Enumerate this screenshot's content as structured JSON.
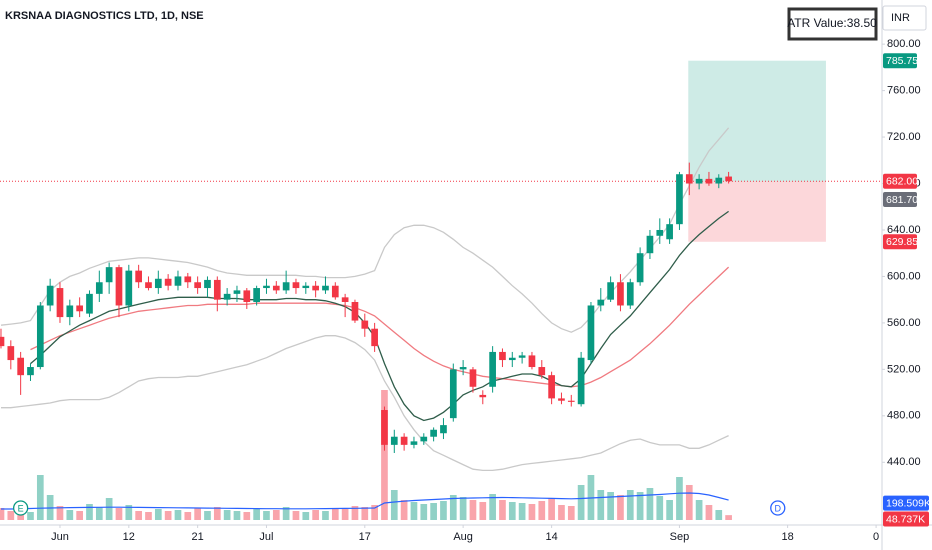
{
  "header": {
    "symbol": "KRSNAA DIAGNOSTICS LTD, 1D, NSE",
    "atr": "ATR Value:38.50",
    "currency": "INR"
  },
  "chart_data": {
    "type": "candlestick",
    "up_color": "#089981",
    "down_color": "#f23645",
    "open": [
      548,
      540,
      530,
      515,
      522,
      575,
      590,
      565,
      575,
      568,
      585,
      595,
      608,
      575,
      605,
      595,
      590,
      598,
      592,
      600,
      595,
      590,
      597,
      580,
      585,
      588,
      578,
      590,
      592,
      588,
      595,
      590,
      592,
      588,
      592,
      582,
      578,
      562,
      555,
      485,
      455,
      462,
      455,
      458,
      462,
      465,
      478,
      520,
      520,
      498,
      505,
      535,
      528,
      530,
      532,
      522,
      515,
      495,
      493,
      490,
      528,
      575,
      580,
      595,
      575,
      595,
      620,
      635,
      632,
      645,
      688,
      680,
      684,
      680,
      686
    ],
    "high": [
      555,
      545,
      535,
      525,
      578,
      598,
      595,
      580,
      582,
      588,
      605,
      612,
      610,
      610,
      610,
      600,
      605,
      602,
      605,
      603,
      600,
      600,
      600,
      590,
      592,
      590,
      592,
      598,
      596,
      605,
      598,
      595,
      596,
      600,
      595,
      585,
      580,
      568,
      560,
      488,
      468,
      465,
      462,
      465,
      470,
      478,
      525,
      528,
      522,
      502,
      540,
      538,
      535,
      535,
      535,
      528,
      518,
      500,
      498,
      535,
      578,
      590,
      600,
      602,
      598,
      625,
      640,
      650,
      650,
      690,
      698,
      688,
      690,
      688,
      690
    ],
    "low": [
      538,
      520,
      498,
      510,
      520,
      570,
      560,
      558,
      565,
      565,
      578,
      585,
      565,
      570,
      590,
      588,
      585,
      588,
      588,
      590,
      585,
      582,
      570,
      575,
      578,
      572,
      575,
      585,
      585,
      585,
      585,
      585,
      582,
      585,
      580,
      565,
      560,
      548,
      535,
      450,
      448,
      450,
      452,
      455,
      458,
      460,
      475,
      515,
      500,
      490,
      500,
      522,
      522,
      525,
      520,
      512,
      490,
      490,
      488,
      488,
      525,
      570,
      578,
      570,
      572,
      592,
      615,
      628,
      628,
      640,
      670,
      675,
      678,
      676,
      680
    ],
    "close": [
      540,
      528,
      515,
      522,
      575,
      592,
      565,
      575,
      570,
      585,
      595,
      608,
      575,
      605,
      595,
      590,
      598,
      592,
      600,
      595,
      590,
      597,
      580,
      585,
      588,
      578,
      590,
      592,
      588,
      595,
      590,
      592,
      588,
      592,
      582,
      578,
      562,
      555,
      540,
      455,
      462,
      455,
      458,
      462,
      468,
      472,
      520,
      522,
      505,
      496,
      535,
      528,
      530,
      532,
      522,
      515,
      495,
      493,
      492,
      530,
      575,
      580,
      595,
      575,
      595,
      620,
      635,
      640,
      645,
      688,
      680,
      684,
      680,
      685,
      682
    ],
    "volume": {
      "values": [
        120,
        90,
        110,
        80,
        450,
        250,
        140,
        100,
        90,
        160,
        130,
        220,
        120,
        150,
        90,
        80,
        110,
        90,
        100,
        80,
        120,
        90,
        130,
        100,
        90,
        80,
        110,
        90,
        100,
        130,
        90,
        80,
        100,
        90,
        120,
        110,
        140,
        130,
        150,
        1300,
        300,
        200,
        180,
        160,
        170,
        190,
        250,
        230,
        200,
        180,
        260,
        200,
        180,
        170,
        160,
        190,
        220,
        150,
        140,
        350,
        450,
        300,
        280,
        250,
        300,
        280,
        320,
        240,
        200,
        430,
        350,
        200,
        150,
        100,
        48.737
      ],
      "value_labels": [
        null,
        null,
        null,
        null,
        null,
        null,
        null,
        null,
        null,
        null,
        null,
        null,
        null,
        null,
        null,
        null,
        null,
        null,
        null,
        null,
        null,
        null,
        null,
        null,
        null,
        null,
        null,
        null,
        null,
        null,
        null,
        null,
        null,
        null,
        null,
        null,
        null,
        null,
        null,
        null,
        null,
        null,
        null,
        null,
        null,
        null,
        null,
        null,
        null,
        null,
        null,
        null,
        null,
        null,
        null,
        null,
        null,
        null,
        null,
        null,
        null,
        null,
        null,
        null,
        null,
        null,
        null,
        null,
        null,
        null,
        null,
        null,
        null,
        null,
        "48.737K"
      ]
    },
    "volume_ma": {
      "color": "#2962ff",
      "values": [
        110,
        110,
        112,
        115,
        118,
        120,
        122,
        124,
        125,
        126,
        127,
        128,
        128,
        127,
        126,
        125,
        124,
        123,
        122,
        121,
        120,
        119,
        118,
        117,
        116,
        115,
        114,
        113,
        113,
        112,
        112,
        112,
        113,
        114,
        115,
        116,
        117,
        118,
        120,
        170,
        180,
        188,
        195,
        200,
        205,
        210,
        215,
        218,
        220,
        222,
        224,
        225,
        224,
        222,
        220,
        218,
        216,
        214,
        212,
        215,
        220,
        225,
        230,
        235,
        240,
        245,
        250,
        255,
        262,
        268,
        270,
        265,
        250,
        225,
        198.509
      ],
      "value_labels": [
        null,
        null,
        null,
        null,
        null,
        null,
        null,
        null,
        null,
        null,
        null,
        null,
        null,
        null,
        null,
        null,
        null,
        null,
        null,
        null,
        null,
        null,
        null,
        null,
        null,
        null,
        null,
        null,
        null,
        null,
        null,
        null,
        null,
        null,
        null,
        null,
        null,
        null,
        null,
        null,
        null,
        null,
        null,
        null,
        null,
        null,
        null,
        null,
        null,
        null,
        null,
        null,
        null,
        null,
        null,
        null,
        null,
        null,
        null,
        null,
        null,
        null,
        null,
        null,
        null,
        null,
        null,
        null,
        null,
        null,
        null,
        null,
        null,
        null,
        "198.509K"
      ]
    },
    "indicators": [
      {
        "color": "#c9c9c9",
        "values": [
          558,
          559,
          560,
          562,
          575,
          588,
          595,
          600,
          603,
          607,
          610,
          613,
          614,
          615,
          616,
          616,
          615,
          614,
          613,
          612,
          610,
          608,
          605,
          603,
          602,
          601,
          601,
          601,
          601,
          601,
          601,
          600,
          600,
          599,
          599,
          599,
          600,
          602,
          605,
          625,
          636,
          642,
          644,
          644,
          642,
          638,
          632,
          625,
          620,
          614,
          608,
          600,
          592,
          585,
          577,
          568,
          560,
          555,
          552,
          556,
          565,
          576,
          586,
          595,
          604,
          614,
          624,
          634,
          645,
          662,
          678,
          694,
          708,
          718,
          728
        ]
      },
      {
        "color": "#c9c9c9",
        "values": [
          487,
          487,
          488,
          489,
          490,
          491,
          493,
          494,
          494,
          494,
          494,
          496,
          500,
          505,
          510,
          512,
          513,
          513,
          513,
          514,
          514,
          516,
          518,
          520,
          522,
          524,
          527,
          530,
          534,
          538,
          541,
          544,
          547,
          549,
          549,
          547,
          543,
          537,
          528,
          510,
          496,
          480,
          468,
          458,
          450,
          446,
          442,
          438,
          434,
          433,
          433,
          434,
          436,
          438,
          439,
          440,
          441,
          442,
          443,
          444,
          446,
          448,
          452,
          456,
          459,
          460,
          457,
          455,
          455,
          455,
          452,
          452,
          455,
          459,
          463
        ]
      },
      {
        "color": "#f07a80",
        "values": [
          null,
          null,
          null,
          537,
          541,
          545,
          549,
          552,
          555,
          558,
          561,
          564,
          566,
          568,
          570,
          571,
          572,
          573,
          574,
          575,
          575,
          576,
          576,
          576,
          576,
          576,
          577,
          577,
          577,
          577,
          577,
          577,
          577,
          577,
          576,
          575,
          573,
          570,
          566,
          559,
          552,
          545,
          538,
          532,
          527,
          523,
          520,
          518,
          516,
          514,
          513,
          512,
          511,
          510,
          509,
          508,
          507,
          506,
          505,
          506,
          509,
          513,
          518,
          523,
          528,
          535,
          542,
          550,
          558,
          567,
          576,
          584,
          592,
          600,
          608
        ]
      },
      {
        "color": "#2f5d4a",
        "values": [
          null,
          null,
          null,
          525,
          532,
          540,
          548,
          553,
          558,
          562,
          566,
          570,
          572,
          574,
          576,
          578,
          580,
          581,
          582,
          582,
          582,
          582,
          581,
          581,
          581,
          580,
          580,
          580,
          580,
          581,
          581,
          580,
          580,
          579,
          577,
          574,
          569,
          560,
          548,
          525,
          505,
          490,
          480,
          476,
          478,
          483,
          490,
          498,
          502,
          505,
          510,
          512,
          514,
          516,
          516,
          514,
          510,
          506,
          505,
          512,
          525,
          538,
          550,
          558,
          566,
          576,
          586,
          596,
          606,
          618,
          628,
          636,
          643,
          650,
          656
        ]
      }
    ],
    "xlim": [
      -0.1,
      89.6
    ],
    "xticks": [
      {
        "value": 6,
        "label": "Jun"
      },
      {
        "value": 13,
        "label": "12"
      },
      {
        "value": 20,
        "label": "21"
      },
      {
        "value": 27,
        "label": "Jul"
      },
      {
        "value": 37,
        "label": "17"
      },
      {
        "value": 47,
        "label": "Aug"
      },
      {
        "value": 56,
        "label": "14"
      },
      {
        "value": 69,
        "label": "Sep"
      },
      {
        "value": 80,
        "label": "18"
      },
      {
        "value": 89,
        "label": "0"
      }
    ],
    "ylim": [
      386,
      838
    ],
    "yticks": [
      {
        "value": 440,
        "label": "440.00"
      },
      {
        "value": 480,
        "label": "480.00"
      },
      {
        "value": 520,
        "label": "520.00"
      },
      {
        "value": 560,
        "label": "560.00"
      },
      {
        "value": 600,
        "label": "600.00"
      },
      {
        "value": 640,
        "label": "640.00"
      },
      {
        "value": 680,
        "label": "680.00"
      },
      {
        "value": 720,
        "label": "720.00"
      },
      {
        "value": 760,
        "label": "760.00"
      },
      {
        "value": 800,
        "label": "800.00"
      }
    ],
    "last_price": {
      "value": 682,
      "label": "682.00"
    },
    "position": {
      "x": [
        69.9,
        83.9
      ],
      "target": 785.75,
      "entry": {
        "value": 681.7,
        "label": "681.70"
      },
      "stop": 629.85
    },
    "events": [
      {
        "label": "E",
        "x": 2,
        "color": "#089981"
      },
      {
        "label": "D",
        "x": 79,
        "color": "#2962ff"
      }
    ]
  }
}
